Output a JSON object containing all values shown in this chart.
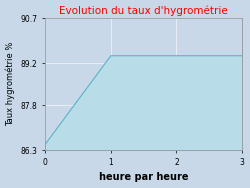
{
  "title": "Evolution du taux d'hygrométrie",
  "title_color": "#ff0000",
  "xlabel": "heure par heure",
  "ylabel": "Taux hygrométrie %",
  "x_data": [
    0,
    1,
    3
  ],
  "y_data": [
    86.5,
    89.45,
    89.45
  ],
  "ylim": [
    86.3,
    90.7
  ],
  "xlim": [
    0,
    3
  ],
  "yticks": [
    86.3,
    87.8,
    89.2,
    90.7
  ],
  "xticks": [
    0,
    1,
    2,
    3
  ],
  "fill_color": "#b8dde8",
  "line_color": "#5ab4c8",
  "bg_color": "#c8d8e8",
  "plot_bg_color": "#c8d8e8",
  "title_fontsize": 7.5,
  "xlabel_fontsize": 7,
  "ylabel_fontsize": 6,
  "tick_fontsize": 5.5
}
